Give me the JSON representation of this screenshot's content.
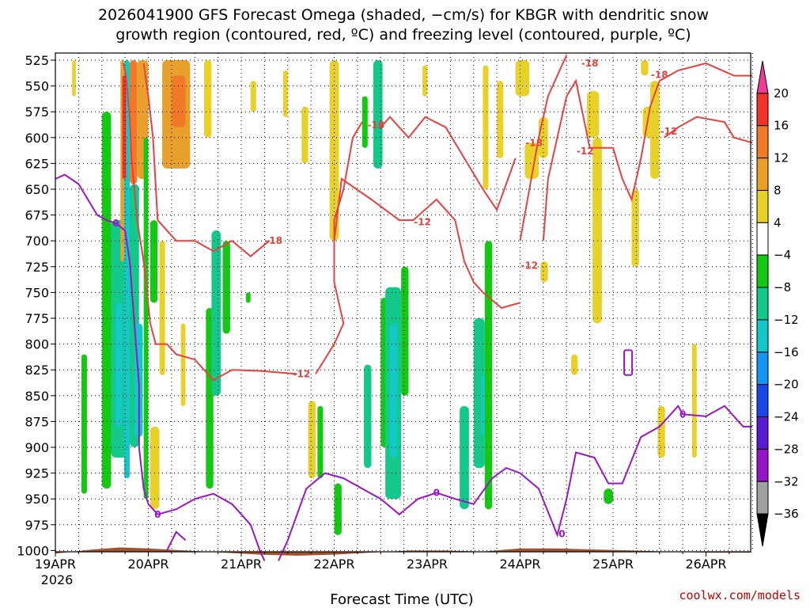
{
  "title_line1": "2026041900 GFS Forecast Omega (shaded, −cm/s) for KBGR with dendritic snow",
  "title_line2": "growth region (contoured, red, ºC) and freezing level (contoured, purple, ºC)",
  "credit": "coolwx.com/models",
  "chart_data": {
    "type": "heatmap",
    "xlabel": "Forecast Time (UTC)",
    "year_label": "2026",
    "x_ticks": [
      "19APR",
      "20APR",
      "21APR",
      "22APR",
      "23APR",
      "24APR",
      "25APR",
      "26APR"
    ],
    "x_range_days": [
      0,
      7.5
    ],
    "y_ticks": [
      525,
      550,
      575,
      600,
      625,
      650,
      675,
      700,
      725,
      750,
      775,
      800,
      825,
      850,
      875,
      900,
      925,
      950,
      975,
      1000
    ],
    "ylim": [
      1020,
      520
    ],
    "grid": true,
    "colorbar": {
      "ticks": [
        "20",
        "16",
        "12",
        "8",
        "4",
        "−4",
        "−8",
        "−12",
        "−16",
        "−20",
        "−24",
        "−28",
        "−32",
        "−36"
      ],
      "colors": [
        "#f03c96",
        "#f03228",
        "#f07a28",
        "#e8a02a",
        "#e8d22a",
        "#ffffff",
        "#14c814",
        "#14c88c",
        "#14c8c8",
        "#1496f0",
        "#1a46e6",
        "#5a1ad2",
        "#9614c8",
        "#a0a0a0",
        "#000000"
      ]
    },
    "contours": {
      "dendritic_red": {
        "color": "#e8413f",
        "levels": [
          "-12",
          "-18"
        ],
        "label_positions": [
          {
            "text": "-18",
            "day": 2.35,
            "p": 700
          },
          {
            "text": "-12",
            "day": 2.65,
            "p": 829
          },
          {
            "text": "-18",
            "day": 3.45,
            "p": 588
          },
          {
            "text": "-12",
            "day": 3.95,
            "p": 682
          },
          {
            "text": "-18",
            "day": 5.15,
            "p": 605
          },
          {
            "text": "-12",
            "day": 5.1,
            "p": 724
          },
          {
            "text": "-12",
            "day": 5.7,
            "p": 613
          },
          {
            "text": "-18",
            "day": 5.75,
            "p": 528
          },
          {
            "text": "-18",
            "day": 6.5,
            "p": 539
          },
          {
            "text": "-12",
            "day": 6.6,
            "p": 594
          }
        ]
      },
      "freezing_purple": {
        "color": "#9a17c8",
        "label": "0",
        "label_positions": [
          {
            "text": "0",
            "day": 0.65,
            "p": 683
          },
          {
            "text": "0",
            "day": 1.1,
            "p": 965
          },
          {
            "text": "0",
            "day": 4.1,
            "p": 944
          },
          {
            "text": "0",
            "day": 5.45,
            "p": 984
          },
          {
            "text": "0",
            "day": 6.75,
            "p": 868
          }
        ]
      }
    },
    "shaded_regions_omega": [
      {
        "day0": 0.18,
        "day1": 0.22,
        "p0": 525,
        "p1": 560,
        "value": 6
      },
      {
        "day0": 0.28,
        "day1": 0.34,
        "p0": 810,
        "p1": 945,
        "value": -6
      },
      {
        "day0": 0.5,
        "day1": 0.6,
        "p0": 575,
        "p1": 940,
        "value": -6
      },
      {
        "day0": 0.6,
        "day1": 0.78,
        "p0": 680,
        "p1": 910,
        "value": -10
      },
      {
        "day0": 0.65,
        "day1": 0.72,
        "p0": 760,
        "p1": 880,
        "value": -14
      },
      {
        "day0": 0.7,
        "day1": 0.74,
        "p0": 525,
        "p1": 720,
        "value": 10
      },
      {
        "day0": 0.74,
        "day1": 0.8,
        "p0": 525,
        "p1": 930,
        "value": -12
      },
      {
        "day0": 0.72,
        "day1": 0.76,
        "p0": 540,
        "p1": 640,
        "value": 18
      },
      {
        "day0": 0.8,
        "day1": 0.88,
        "p0": 525,
        "p1": 645,
        "value": 14
      },
      {
        "day0": 0.8,
        "day1": 0.9,
        "p0": 645,
        "p1": 900,
        "value": -8
      },
      {
        "day0": 0.85,
        "day1": 0.94,
        "p0": 780,
        "p1": 890,
        "value": -14
      },
      {
        "day0": 0.88,
        "day1": 1.0,
        "p0": 525,
        "p1": 640,
        "value": 10
      },
      {
        "day0": 0.95,
        "day1": 1.0,
        "p0": 600,
        "p1": 950,
        "value": -6
      },
      {
        "day0": 1.02,
        "day1": 1.1,
        "p0": 680,
        "p1": 760,
        "value": -6
      },
      {
        "day0": 1.02,
        "day1": 1.12,
        "p0": 880,
        "p1": 960,
        "value": 6
      },
      {
        "day0": 1.15,
        "day1": 1.45,
        "p0": 525,
        "p1": 630,
        "value": 10
      },
      {
        "day0": 1.25,
        "day1": 1.4,
        "p0": 540,
        "p1": 590,
        "value": 14
      },
      {
        "day0": 1.12,
        "day1": 1.18,
        "p0": 700,
        "p1": 830,
        "value": 6
      },
      {
        "day0": 1.35,
        "day1": 1.4,
        "p0": 780,
        "p1": 860,
        "value": 6
      },
      {
        "day0": 1.6,
        "day1": 1.68,
        "p0": 525,
        "p1": 600,
        "value": 6
      },
      {
        "day0": 1.62,
        "day1": 1.7,
        "p0": 765,
        "p1": 940,
        "value": -6
      },
      {
        "day0": 1.68,
        "day1": 1.78,
        "p0": 690,
        "p1": 850,
        "value": -8
      },
      {
        "day0": 1.8,
        "day1": 1.88,
        "p0": 700,
        "p1": 790,
        "value": -6
      },
      {
        "day0": 2.05,
        "day1": 2.1,
        "p0": 750,
        "p1": 760,
        "value": -6
      },
      {
        "day0": 2.1,
        "day1": 2.16,
        "p0": 545,
        "p1": 575,
        "value": 6
      },
      {
        "day0": 2.45,
        "day1": 2.5,
        "p0": 535,
        "p1": 580,
        "value": 6
      },
      {
        "day0": 2.65,
        "day1": 2.72,
        "p0": 570,
        "p1": 625,
        "value": 6
      },
      {
        "day0": 2.72,
        "day1": 2.8,
        "p0": 855,
        "p1": 930,
        "value": 6
      },
      {
        "day0": 2.82,
        "day1": 2.88,
        "p0": 860,
        "p1": 930,
        "value": -6
      },
      {
        "day0": 2.95,
        "day1": 3.05,
        "p0": 525,
        "p1": 700,
        "value": 6
      },
      {
        "day0": 3.0,
        "day1": 3.08,
        "p0": 935,
        "p1": 985,
        "value": -6
      },
      {
        "day0": 3.3,
        "day1": 3.36,
        "p0": 560,
        "p1": 610,
        "value": -6
      },
      {
        "day0": 3.32,
        "day1": 3.4,
        "p0": 820,
        "p1": 920,
        "value": -8
      },
      {
        "day0": 3.42,
        "day1": 3.52,
        "p0": 525,
        "p1": 630,
        "value": -10
      },
      {
        "day0": 3.5,
        "day1": 3.58,
        "p0": 755,
        "p1": 900,
        "value": -6
      },
      {
        "day0": 3.55,
        "day1": 3.72,
        "p0": 745,
        "p1": 950,
        "value": -10
      },
      {
        "day0": 3.6,
        "day1": 3.68,
        "p0": 780,
        "p1": 910,
        "value": -14
      },
      {
        "day0": 3.72,
        "day1": 3.8,
        "p0": 725,
        "p1": 850,
        "value": -6
      },
      {
        "day0": 3.95,
        "day1": 4.0,
        "p0": 530,
        "p1": 560,
        "value": 6
      },
      {
        "day0": 4.35,
        "day1": 4.45,
        "p0": 860,
        "p1": 960,
        "value": -8
      },
      {
        "day0": 4.5,
        "day1": 4.62,
        "p0": 775,
        "p1": 920,
        "value": -8
      },
      {
        "day0": 4.58,
        "day1": 4.66,
        "p0": 830,
        "p1": 890,
        "value": -12
      },
      {
        "day0": 4.6,
        "day1": 4.66,
        "p0": 530,
        "p1": 650,
        "value": 6
      },
      {
        "day0": 4.62,
        "day1": 4.7,
        "p0": 700,
        "p1": 960,
        "value": -6
      },
      {
        "day0": 4.75,
        "day1": 4.82,
        "p0": 545,
        "p1": 620,
        "value": 6
      },
      {
        "day0": 4.95,
        "day1": 5.1,
        "p0": 525,
        "p1": 560,
        "value": 6
      },
      {
        "day0": 5.05,
        "day1": 5.2,
        "p0": 605,
        "p1": 640,
        "value": 6
      },
      {
        "day0": 5.2,
        "day1": 5.3,
        "p0": 580,
        "p1": 620,
        "value": 6
      },
      {
        "day0": 5.22,
        "day1": 5.3,
        "p0": 720,
        "p1": 740,
        "value": 6
      },
      {
        "day0": 5.55,
        "day1": 5.62,
        "p0": 810,
        "p1": 830,
        "value": 6
      },
      {
        "day0": 5.72,
        "day1": 5.85,
        "p0": 555,
        "p1": 600,
        "value": 6
      },
      {
        "day0": 5.78,
        "day1": 5.88,
        "p0": 600,
        "p1": 780,
        "value": 6
      },
      {
        "day0": 5.9,
        "day1": 6.0,
        "p0": 940,
        "p1": 955,
        "value": -6
      },
      {
        "day0": 6.2,
        "day1": 6.28,
        "p0": 650,
        "p1": 725,
        "value": 6
      },
      {
        "day0": 6.3,
        "day1": 6.38,
        "p0": 525,
        "p1": 540,
        "value": 6
      },
      {
        "day0": 6.32,
        "day1": 6.42,
        "p0": 570,
        "p1": 600,
        "value": 6
      },
      {
        "day0": 6.4,
        "day1": 6.5,
        "p0": 545,
        "p1": 640,
        "value": 6
      },
      {
        "day0": 6.48,
        "day1": 6.56,
        "p0": 860,
        "p1": 910,
        "value": 6
      },
      {
        "day0": 6.85,
        "day1": 6.9,
        "p0": 800,
        "p1": 910,
        "value": 6
      }
    ],
    "ground": {
      "color": "#a0522d"
    }
  }
}
